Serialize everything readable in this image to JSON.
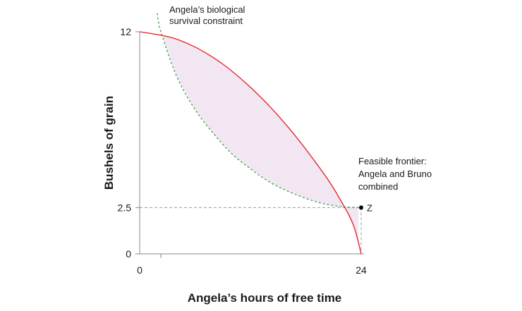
{
  "chart_data": {
    "type": "line",
    "xlabel": "Angela’s hours of free time",
    "ylabel": "Bushels of grain",
    "xlim": [
      0,
      24
    ],
    "ylim": [
      0,
      12
    ],
    "x_ticks": [
      "0",
      "24"
    ],
    "y_ticks": [
      "0",
      "2.5",
      "12"
    ],
    "grid": false,
    "colors": {
      "frontier": "#e8262a",
      "constraint": "#3aa64a",
      "shaded_region": "#f1e6f1",
      "guide_lines": "#9a9a9a",
      "axes": "#888888"
    },
    "series": [
      {
        "id": "frontier",
        "style": "solid",
        "x": [
          0,
          4,
          8,
          12,
          16,
          20,
          22,
          23.2,
          24
        ],
        "y": [
          12,
          11.6,
          10.6,
          9.0,
          6.9,
          4.3,
          2.7,
          1.5,
          0
        ]
      },
      {
        "id": "constraint",
        "style": "dashed",
        "x": [
          1.9,
          2.3,
          4,
          6,
          8,
          10,
          12,
          14,
          16,
          18,
          20,
          22,
          23.7
        ],
        "y": [
          13.0,
          12.0,
          9.6,
          7.8,
          6.5,
          5.4,
          4.6,
          3.9,
          3.4,
          3.0,
          2.7,
          2.55,
          2.5
        ]
      }
    ],
    "points": [
      {
        "label": "Z",
        "x": 24,
        "y": 2.5
      }
    ],
    "annotations": {
      "constraint_label": [
        "Angela’s biological",
        "survival constraint"
      ],
      "frontier_label": [
        "Feasible frontier:",
        "Angela and Bruno",
        "combined"
      ],
      "point_label": "Z"
    }
  }
}
